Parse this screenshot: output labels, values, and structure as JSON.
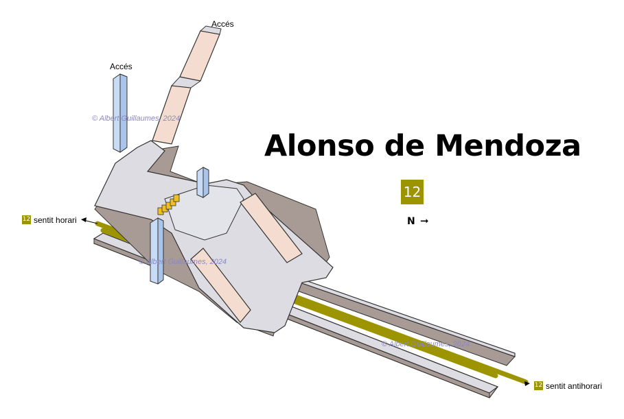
{
  "station": {
    "name": "Alonso de Mendoza",
    "line": "12",
    "north_label": "N",
    "line_color": "#9c9400"
  },
  "access": {
    "left_label": "Accés",
    "top_label": "Accés"
  },
  "directions": {
    "clockwise": {
      "badge": "12",
      "text": "sentit horari"
    },
    "counterclockwise": {
      "badge": "12",
      "text": "sentit antihorari"
    }
  },
  "watermark": "© Albert Guillaumes, 2024",
  "colors": {
    "floor": "#dcdce2",
    "floor_side": "#a89a94",
    "stairs": "#f4ddd0",
    "lift": "#c8dcf6",
    "validator": "#f0c020"
  }
}
